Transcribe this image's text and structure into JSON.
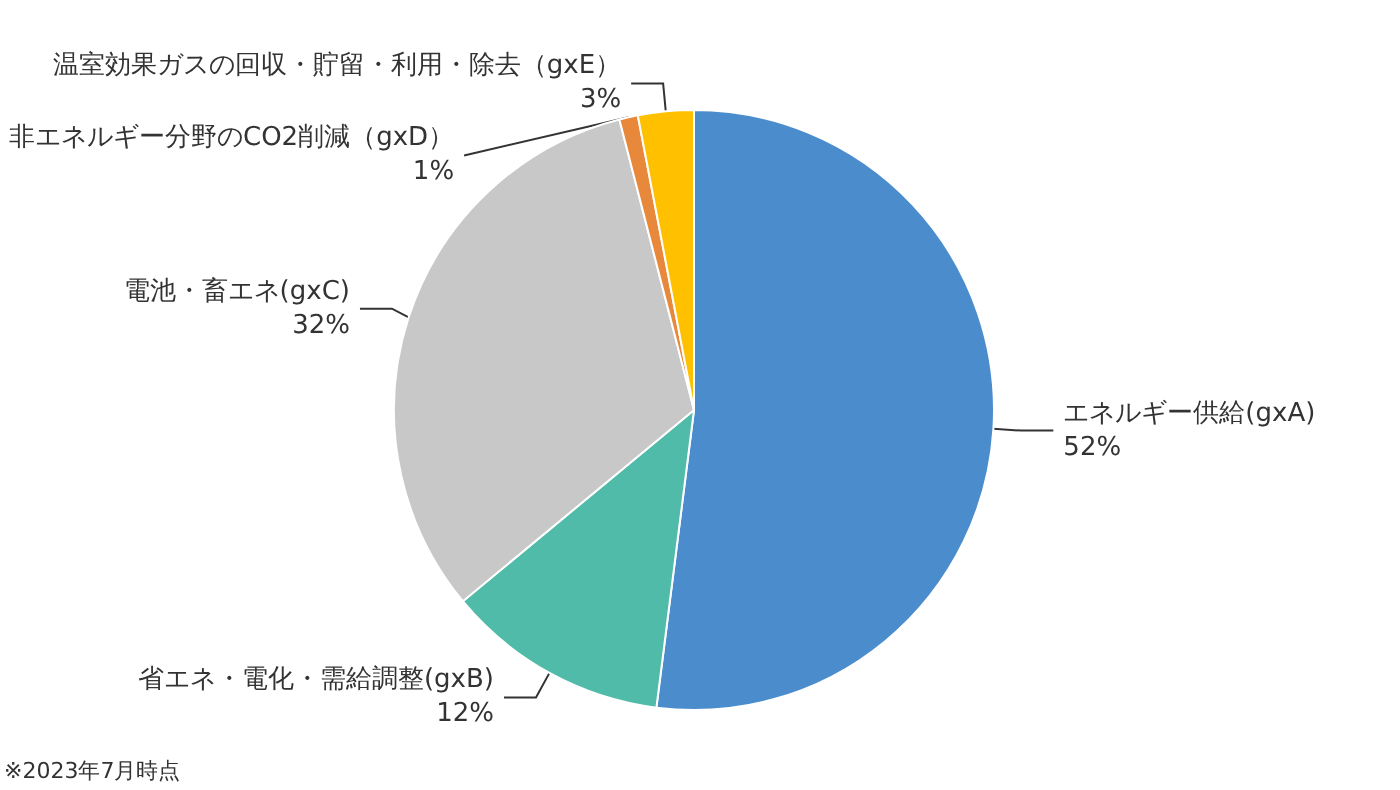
{
  "chart_data": {
    "type": "pie",
    "categories": [
      "エネルギー供給(gxA)",
      "省エネ・電化・需給調整(gxB)",
      "電池・畜エネ(gxC)",
      "非エネルギー分野のCO2削減（gxD）",
      "温室効果ガスの回収・貯留・利用・除去（gxE）"
    ],
    "values": [
      52,
      12,
      32,
      1,
      3
    ],
    "colors": [
      "#4a8ccc",
      "#4fbba8",
      "#c8c8c8",
      "#e8883a",
      "#ffc000"
    ],
    "value_labels": [
      "52%",
      "12%",
      "32%",
      "1%",
      "3%"
    ],
    "annotations": [
      "※2023年7月時点"
    ],
    "legend": false
  }
}
